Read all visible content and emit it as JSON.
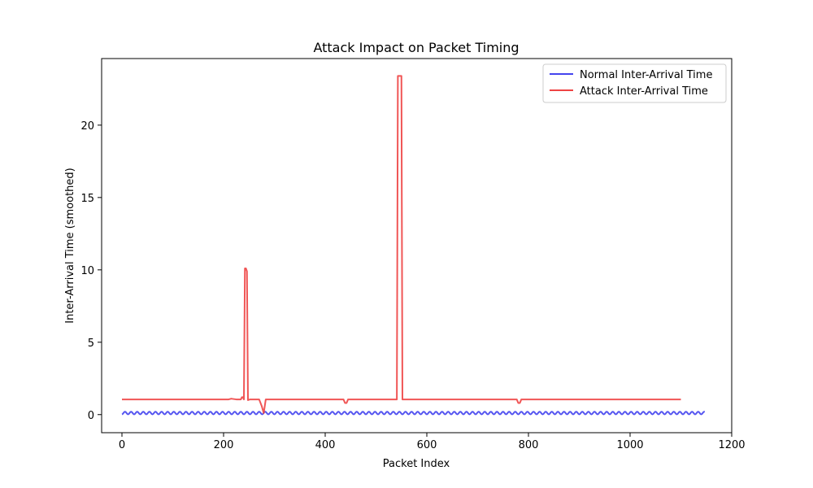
{
  "chart_data": {
    "type": "line",
    "title": "Attack Impact on Packet Timing",
    "xlabel": "Packet Index",
    "ylabel": "Inter-Arrival Time (smoothed)",
    "xlim": [
      -40,
      1200
    ],
    "ylim": [
      -1.25,
      24.6
    ],
    "xticks": [
      0,
      200,
      400,
      600,
      800,
      1000,
      1200
    ],
    "yticks": [
      0,
      5,
      10,
      15,
      20
    ],
    "grid": false,
    "legend_position": "top-right",
    "series": [
      {
        "name": "Normal Inter-Arrival Time",
        "color": "#4444ee",
        "pattern": "periodic",
        "x_start": 0,
        "x_end": 1147,
        "period": 12,
        "low": 0.02,
        "high": 0.2
      },
      {
        "name": "Attack Inter-Arrival Time",
        "color": "#ee4444",
        "pattern": "points",
        "points": [
          [
            0,
            1.05
          ],
          [
            210,
            1.05
          ],
          [
            215,
            1.1
          ],
          [
            225,
            1.05
          ],
          [
            234,
            1.05
          ],
          [
            236,
            1.2
          ],
          [
            238,
            1.2
          ],
          [
            240,
            1.05
          ],
          [
            242,
            10.1
          ],
          [
            244,
            10.1
          ],
          [
            245,
            10.0
          ],
          [
            246,
            9.9
          ],
          [
            248,
            1.0
          ],
          [
            252,
            1.05
          ],
          [
            270,
            1.05
          ],
          [
            275,
            0.6
          ],
          [
            279,
            0.1
          ],
          [
            283,
            1.05
          ],
          [
            436,
            1.05
          ],
          [
            439,
            0.8
          ],
          [
            442,
            0.8
          ],
          [
            445,
            1.05
          ],
          [
            541,
            1.05
          ],
          [
            543,
            23.4
          ],
          [
            550,
            23.4
          ],
          [
            552,
            1.05
          ],
          [
            777,
            1.05
          ],
          [
            780,
            0.8
          ],
          [
            783,
            0.8
          ],
          [
            786,
            1.05
          ],
          [
            1100,
            1.05
          ]
        ]
      }
    ]
  }
}
